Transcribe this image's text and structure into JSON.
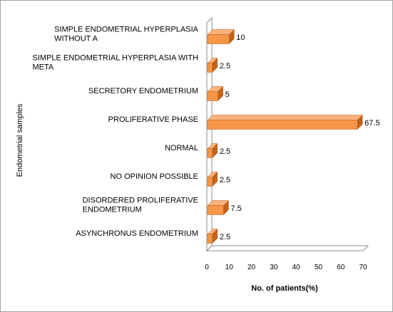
{
  "chart_data": {
    "type": "bar",
    "orientation": "horizontal",
    "style": "3d",
    "categories": [
      "SIMPLE ENDOMETRIAL HYPERPLASIA WITHOUT A",
      "SIMPLE ENDOMETRIAL HYPERPLASIA WITH META",
      "SECRETORY ENDOMETRIUM",
      "PROLIFERATIVE PHASE",
      "NORMAL",
      "NO OPINION POSSIBLE",
      "DISORDERED PROLIFERATIVE ENDOMETRIUM",
      "ASYNCHRONUS ENDOMETRIUM"
    ],
    "category_lines": [
      [
        "SIMPLE ENDOMETRIAL  HYPERPLASIA",
        "WITHOUT A"
      ],
      [
        "SIMPLE ENDOMETRIAL  HYPERPLASIA WITH",
        "META"
      ],
      [
        "SECRETORY  ENDOMETRIUM"
      ],
      [
        "PROLIFERATIVE PHASE"
      ],
      [
        "NORMAL"
      ],
      [
        "NO OPINION  POSSIBLE"
      ],
      [
        "DISORDERED  PROLIFERATIVE",
        "ENDOMETRIUM"
      ],
      [
        "ASYNCHRONUS  ENDOMETRIUM"
      ]
    ],
    "values": [
      10,
      2.5,
      5,
      67.5,
      2.5,
      2.5,
      7.5,
      2.5
    ],
    "data_labels": [
      "10",
      "2.5",
      "5",
      "67.5",
      "2.5",
      "2.5",
      "7.5",
      "2.5"
    ],
    "xlabel": "No. of patients(%)",
    "ylabel": "Endometrial samples",
    "xlim": [
      0,
      70
    ],
    "xticks": [
      "0",
      "10",
      "20",
      "30",
      "40",
      "50",
      "60",
      "70"
    ],
    "grid": false,
    "legend": "none",
    "bar_color": "#f79646",
    "bar_top_color": "#fbb27b",
    "bar_side_color": "#c0631d"
  }
}
